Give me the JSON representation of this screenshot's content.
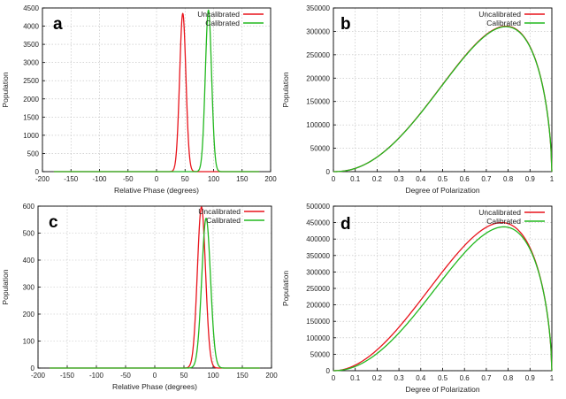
{
  "colors": {
    "uncalibrated": "#e8141c",
    "calibrated": "#22b81e"
  },
  "chart_data": [
    {
      "panel": "a",
      "type": "line",
      "xlabel": "Relative Phase (degrees)",
      "ylabel": "Population",
      "xlim": [
        -200,
        200
      ],
      "ylim": [
        0,
        4500
      ],
      "xticks": [
        -200,
        -150,
        -100,
        -50,
        0,
        50,
        100,
        150,
        200
      ],
      "yticks": [
        0,
        500,
        1000,
        1500,
        2000,
        2500,
        3000,
        3500,
        4000,
        4500
      ],
      "legend_position": "top-right",
      "series": [
        {
          "name": "Uncalibrated",
          "color": "uncalibrated",
          "shape": "gaussian",
          "peak_x": 46,
          "peak_y": 4350,
          "sigma": 5.5,
          "x_range": [
            -180,
            180
          ]
        },
        {
          "name": "Calibrated",
          "color": "calibrated",
          "shape": "gaussian",
          "peak_x": 91,
          "peak_y": 4440,
          "sigma": 5.5,
          "x_range": [
            -180,
            180
          ]
        }
      ]
    },
    {
      "panel": "b",
      "type": "line",
      "xlabel": "Degree of Polarization",
      "ylabel": "Population",
      "xlim": [
        0,
        1
      ],
      "ylim": [
        0,
        350000
      ],
      "xticks": [
        0,
        0.1,
        0.2,
        0.3,
        0.4,
        0.5,
        0.6,
        0.7,
        0.8,
        0.9,
        1
      ],
      "yticks": [
        0,
        50000,
        100000,
        150000,
        200000,
        250000,
        300000,
        350000
      ],
      "legend_position": "top-right",
      "series": [
        {
          "name": "Uncalibrated",
          "color": "uncalibrated",
          "shape": "skewed",
          "peak_x": 0.79,
          "peak_y": 311000
        },
        {
          "name": "Calibrated",
          "color": "calibrated",
          "shape": "skewed",
          "peak_x": 0.79,
          "peak_y": 310000
        }
      ]
    },
    {
      "panel": "c",
      "type": "line",
      "xlabel": "Relative Phase (degrees)",
      "ylabel": "Population",
      "xlim": [
        -200,
        200
      ],
      "ylim": [
        0,
        600
      ],
      "xticks": [
        -200,
        -150,
        -100,
        -50,
        0,
        50,
        100,
        150,
        200
      ],
      "yticks": [
        0,
        100,
        200,
        300,
        400,
        500,
        600
      ],
      "legend_position": "top-right",
      "series": [
        {
          "name": "Uncalibrated",
          "color": "uncalibrated",
          "shape": "gaussian",
          "peak_x": 80,
          "peak_y": 597,
          "sigma": 7,
          "x_range": [
            -180,
            180
          ]
        },
        {
          "name": "Calibrated",
          "color": "calibrated",
          "shape": "gaussian",
          "peak_x": 88,
          "peak_y": 555,
          "sigma": 7.5,
          "x_range": [
            -180,
            180
          ]
        }
      ]
    },
    {
      "panel": "d",
      "type": "line",
      "xlabel": "Degree of Polarization",
      "ylabel": "Population",
      "xlim": [
        0,
        1
      ],
      "ylim": [
        0,
        500000
      ],
      "xticks": [
        0,
        0.1,
        0.2,
        0.3,
        0.4,
        0.5,
        0.6,
        0.7,
        0.8,
        0.9,
        1
      ],
      "yticks": [
        0,
        50000,
        100000,
        150000,
        200000,
        250000,
        300000,
        350000,
        400000,
        450000,
        500000
      ],
      "legend_position": "top-right",
      "series": [
        {
          "name": "Uncalibrated",
          "color": "uncalibrated",
          "shape": "skewed",
          "peak_x": 0.77,
          "peak_y": 450000
        },
        {
          "name": "Calibrated",
          "color": "calibrated",
          "shape": "skewed",
          "peak_x": 0.78,
          "peak_y": 437000
        }
      ]
    }
  ]
}
